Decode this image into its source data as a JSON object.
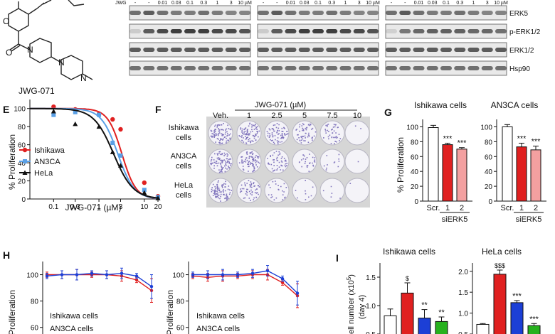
{
  "panel_top": {
    "compound": "JWG-071",
    "lane_prefix": "JWG",
    "lanes": [
      "-",
      "-",
      "0.01",
      "0.03",
      "0.1",
      "0.3",
      "1",
      "3",
      "10 µM"
    ],
    "blot_rows": [
      "ERK5",
      "p-ERK1/2",
      "ERK1/2",
      "Hsp90"
    ]
  },
  "panel_E": {
    "letter": "E",
    "ylabel": "% Proliferation",
    "xlabel": "JWG-071 (µM)",
    "xticks": [
      "0.1",
      "0.3",
      "1",
      "3",
      "10",
      "20"
    ],
    "yticks": [
      "0",
      "20",
      "40",
      "60",
      "80",
      "100"
    ],
    "legend": [
      "Ishikawa",
      "AN3CA",
      "HeLa"
    ]
  },
  "panel_F": {
    "letter": "F",
    "header": "JWG-071 (µM)",
    "columns": [
      "Veh.",
      "1",
      "2.5",
      "5",
      "7.5",
      "10"
    ],
    "rows": [
      [
        "Ishikawa",
        "cells"
      ],
      [
        "AN3CA",
        "cells"
      ],
      [
        "HeLa",
        "cells"
      ]
    ]
  },
  "panel_G": {
    "letter": "G",
    "ylabel": "% Proliferation",
    "yticks": [
      "0",
      "20",
      "40",
      "60",
      "80",
      "100"
    ],
    "xcats": [
      "Scr.",
      "1",
      "2"
    ],
    "group_label": "siERK5",
    "titles": [
      "Ishikawa cells",
      "AN3CA cells"
    ],
    "sig": "***"
  },
  "panel_H": {
    "letter": "H",
    "ylabel": "Proliferation",
    "yticks": [
      "100",
      "80",
      "60"
    ],
    "legend": [
      "Ishikawa cells",
      "AN3CA cells"
    ]
  },
  "panel_I": {
    "letter": "I",
    "ylabel_line1": "ell number (x10",
    "ylabel_exp": "5",
    "ylabel_end": ")",
    "ylabel_line2": "(day 4)",
    "titles": [
      "Ishikawa cells",
      "HeLa cells"
    ],
    "yticks_left": [
      "0.5",
      "1.0",
      "1.5"
    ],
    "yticks_right": [
      "0.5",
      "1.0",
      "1.5",
      "2.0"
    ],
    "marks_left": [
      "$",
      "**",
      "**"
    ],
    "marks_right": [
      "$$$",
      "***",
      "***"
    ]
  },
  "colors": {
    "ishikawa": "#e02020",
    "an3ca": "#5aa0e6",
    "hela": "#111111",
    "sipink": "#f3a0a0",
    "blue": "#1c3fd6",
    "green": "#26b11e",
    "crystal": "#5a4aa8"
  },
  "chart_data": [
    {
      "type": "line",
      "panel": "E",
      "xscale": "log",
      "xlabel": "JWG-071 (µM)",
      "ylabel": "% Proliferation",
      "xlim": [
        0.03,
        20
      ],
      "ylim": [
        0,
        110
      ],
      "series": [
        {
          "name": "Ishikawa",
          "x": [
            0.1,
            0.3,
            1,
            2,
            3,
            10,
            20
          ],
          "y": [
            102,
            99,
            94,
            88,
            77,
            18,
            3
          ]
        },
        {
          "name": "AN3CA",
          "x": [
            0.1,
            0.3,
            1,
            2,
            3,
            10,
            20
          ],
          "y": [
            93,
            96,
            93,
            62,
            48,
            10,
            2
          ]
        },
        {
          "name": "HeLa",
          "x": [
            0.1,
            0.3,
            1,
            2,
            3,
            10,
            20
          ],
          "y": [
            97,
            83,
            80,
            52,
            37,
            7,
            1
          ]
        }
      ]
    },
    {
      "type": "bar",
      "panel": "G",
      "title": "Ishikawa cells",
      "categories": [
        "Scr.",
        "1",
        "2"
      ],
      "values": [
        99,
        76,
        70
      ],
      "errors": [
        3,
        2,
        2
      ],
      "ylim": [
        0,
        110
      ]
    },
    {
      "type": "bar",
      "panel": "G",
      "title": "AN3CA cells",
      "categories": [
        "Scr.",
        "1",
        "2"
      ],
      "values": [
        100,
        73,
        69
      ],
      "errors": [
        3,
        5,
        5
      ],
      "ylim": [
        0,
        110
      ]
    },
    {
      "type": "line",
      "panel": "H-left",
      "ylim": [
        55,
        110
      ],
      "series": [
        {
          "name": "Ishikawa cells",
          "y": [
            100,
            100,
            100,
            100,
            100,
            99,
            96,
            88
          ]
        },
        {
          "name": "AN3CA cells",
          "y": [
            99,
            100,
            100,
            101,
            100,
            101,
            99,
            91
          ]
        }
      ]
    },
    {
      "type": "line",
      "panel": "H-right",
      "ylim": [
        55,
        110
      ],
      "series": [
        {
          "name": "Ishikawa cells",
          "y": [
            99,
            98,
            99,
            99,
            100,
            100,
            94,
            84
          ]
        },
        {
          "name": "AN3CA cells",
          "y": [
            100,
            100,
            100,
            100,
            101,
            103,
            97,
            86
          ]
        }
      ]
    },
    {
      "type": "bar",
      "panel": "I",
      "title": "Ishikawa cells",
      "values": [
        0.82,
        1.22,
        0.78,
        0.72
      ],
      "errors": [
        0.12,
        0.18,
        0.15,
        0.08
      ],
      "ylim": [
        0.5,
        1.75
      ]
    },
    {
      "type": "bar",
      "panel": "I",
      "title": "HeLa cells",
      "values": [
        0.73,
        1.93,
        1.25,
        0.7
      ],
      "errors": [
        0.02,
        0.1,
        0.05,
        0.05
      ],
      "ylim": [
        0.5,
        2.2
      ]
    }
  ]
}
